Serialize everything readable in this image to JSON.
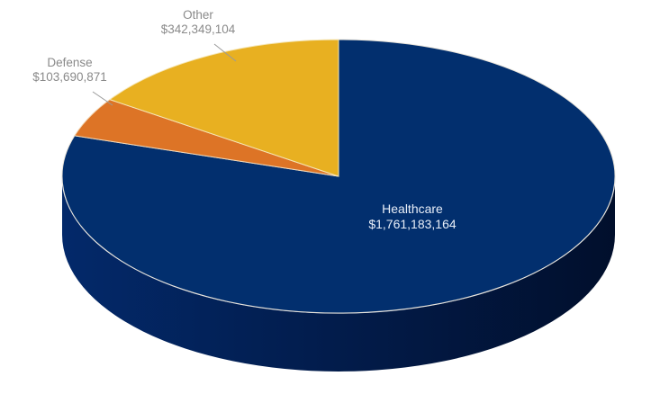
{
  "chart_data": {
    "type": "pie",
    "style": "3d",
    "title": "",
    "categories": [
      "Healthcare",
      "Defense",
      "Other"
    ],
    "values": [
      1761183164,
      103690871,
      342349104
    ],
    "value_labels": [
      "$1,761,183,164",
      "$103,690,871",
      "$342,349,104"
    ],
    "colors": [
      "#022f6e",
      "#dd7426",
      "#e8b021"
    ],
    "legend": "none",
    "data_labels": "category and value",
    "start_angle_deg": 0,
    "direction": "counterclockwise from Other at 12 o'clock"
  },
  "labels": {
    "healthcare": {
      "name": "Healthcare",
      "value": "$1,761,183,164"
    },
    "defense": {
      "name": "Defense",
      "value": "$103,690,871"
    },
    "other": {
      "name": "Other",
      "value": "$342,349,104"
    }
  }
}
